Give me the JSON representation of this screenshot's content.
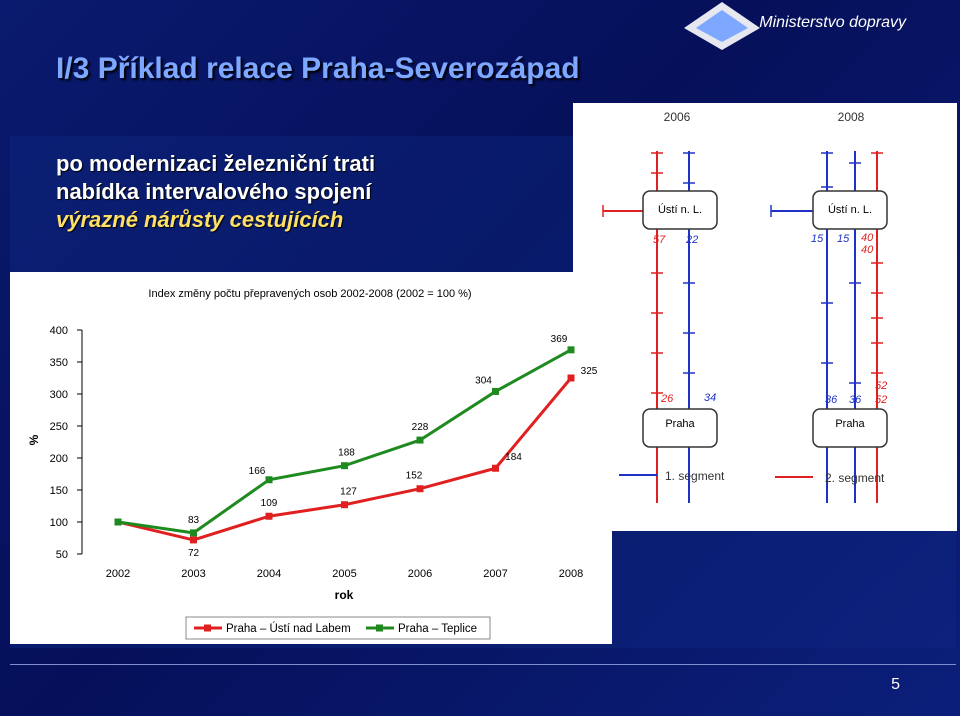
{
  "header": {
    "title": "I/3 Příklad relace Praha-Severozápad",
    "ministry": "Ministerstvo dopravy"
  },
  "summary": {
    "line1": "po modernizaci železniční trati",
    "line2": "nabídka intervalového spojení",
    "line3": "výrazné nárůsty cestujících"
  },
  "diagram": {
    "year_left": "2006",
    "year_right": "2008",
    "top_station": "Ústí n. L.",
    "bottom_station": "Praha",
    "left_top_a": "57",
    "left_top_b": "22",
    "right_top_a": "15",
    "right_top_b": "15",
    "right_top_c": "40",
    "right_top_d": "40",
    "left_bottom_a": "26",
    "left_bottom_b": "34",
    "right_bottom_a": "36",
    "right_bottom_b": "36",
    "right_bottom_c": "52",
    "right_bottom_d": "52",
    "segment1": "1. segment",
    "segment2": "2. segment",
    "colors": {
      "blue": "#1e32c8",
      "red": "#e02020"
    }
  },
  "chart_data": {
    "type": "line",
    "title": "Index změny počtu přepravených osob 2002-2008 (2002 = 100 %)",
    "xlabel": "rok",
    "ylabel": "%",
    "categories": [
      "2002",
      "2003",
      "2004",
      "2005",
      "2006",
      "2007",
      "2008"
    ],
    "ylim": [
      50,
      400
    ],
    "yticks": [
      "50",
      "100",
      "150",
      "200",
      "250",
      "300",
      "350",
      "400"
    ],
    "legend_position": "bottom",
    "series": [
      {
        "name": "Praha – Ústí nad Labem",
        "color": "#e02020",
        "values": [
          100,
          72,
          109,
          127,
          152,
          184,
          325
        ],
        "labels": [
          "",
          "72",
          "109",
          "127",
          "152",
          "184",
          "325"
        ]
      },
      {
        "name": "Praha – Teplice",
        "color": "#1f8a1f",
        "values": [
          100,
          83,
          166,
          188,
          228,
          304,
          369
        ],
        "labels": [
          "",
          "83",
          "166",
          "188",
          "228",
          "304",
          "369"
        ]
      }
    ]
  },
  "footer": {
    "page_number": "5"
  }
}
